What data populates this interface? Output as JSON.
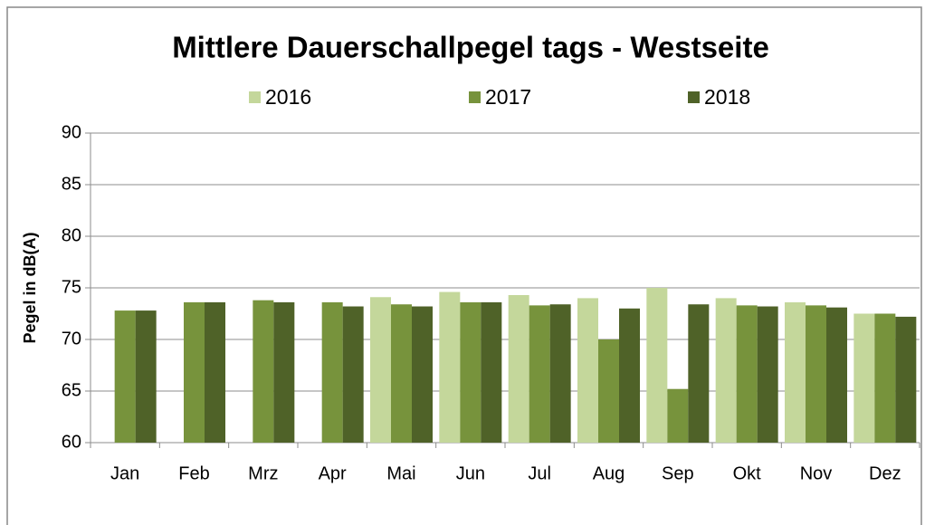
{
  "chart_data": {
    "type": "bar",
    "title": "Mittlere Dauerschallpegel tags - Westseite",
    "y_label": "Pegel in dB(A)",
    "categories": [
      "Jan",
      "Feb",
      "Mrz",
      "Apr",
      "Mai",
      "Jun",
      "Jul",
      "Aug",
      "Sep",
      "Okt",
      "Nov",
      "Dez"
    ],
    "series": [
      {
        "name": "2016",
        "color": "#c4d79b",
        "values": [
          null,
          null,
          null,
          null,
          74.1,
          74.6,
          74.3,
          74.0,
          75.0,
          74.0,
          73.6,
          72.5
        ]
      },
      {
        "name": "2017",
        "color": "#77933c",
        "values": [
          72.8,
          73.6,
          73.8,
          73.6,
          73.4,
          73.6,
          73.3,
          70.0,
          65.2,
          73.3,
          73.3,
          72.5
        ]
      },
      {
        "name": "2018",
        "color": "#4f6228",
        "values": [
          72.8,
          73.6,
          73.6,
          73.2,
          73.2,
          73.6,
          73.4,
          73.0,
          73.4,
          73.2,
          73.1,
          72.2
        ]
      }
    ],
    "ylim": [
      60,
      90
    ],
    "yticks": [
      60,
      65,
      70,
      75,
      80,
      85,
      90
    ],
    "grid": true,
    "legend": "top"
  }
}
